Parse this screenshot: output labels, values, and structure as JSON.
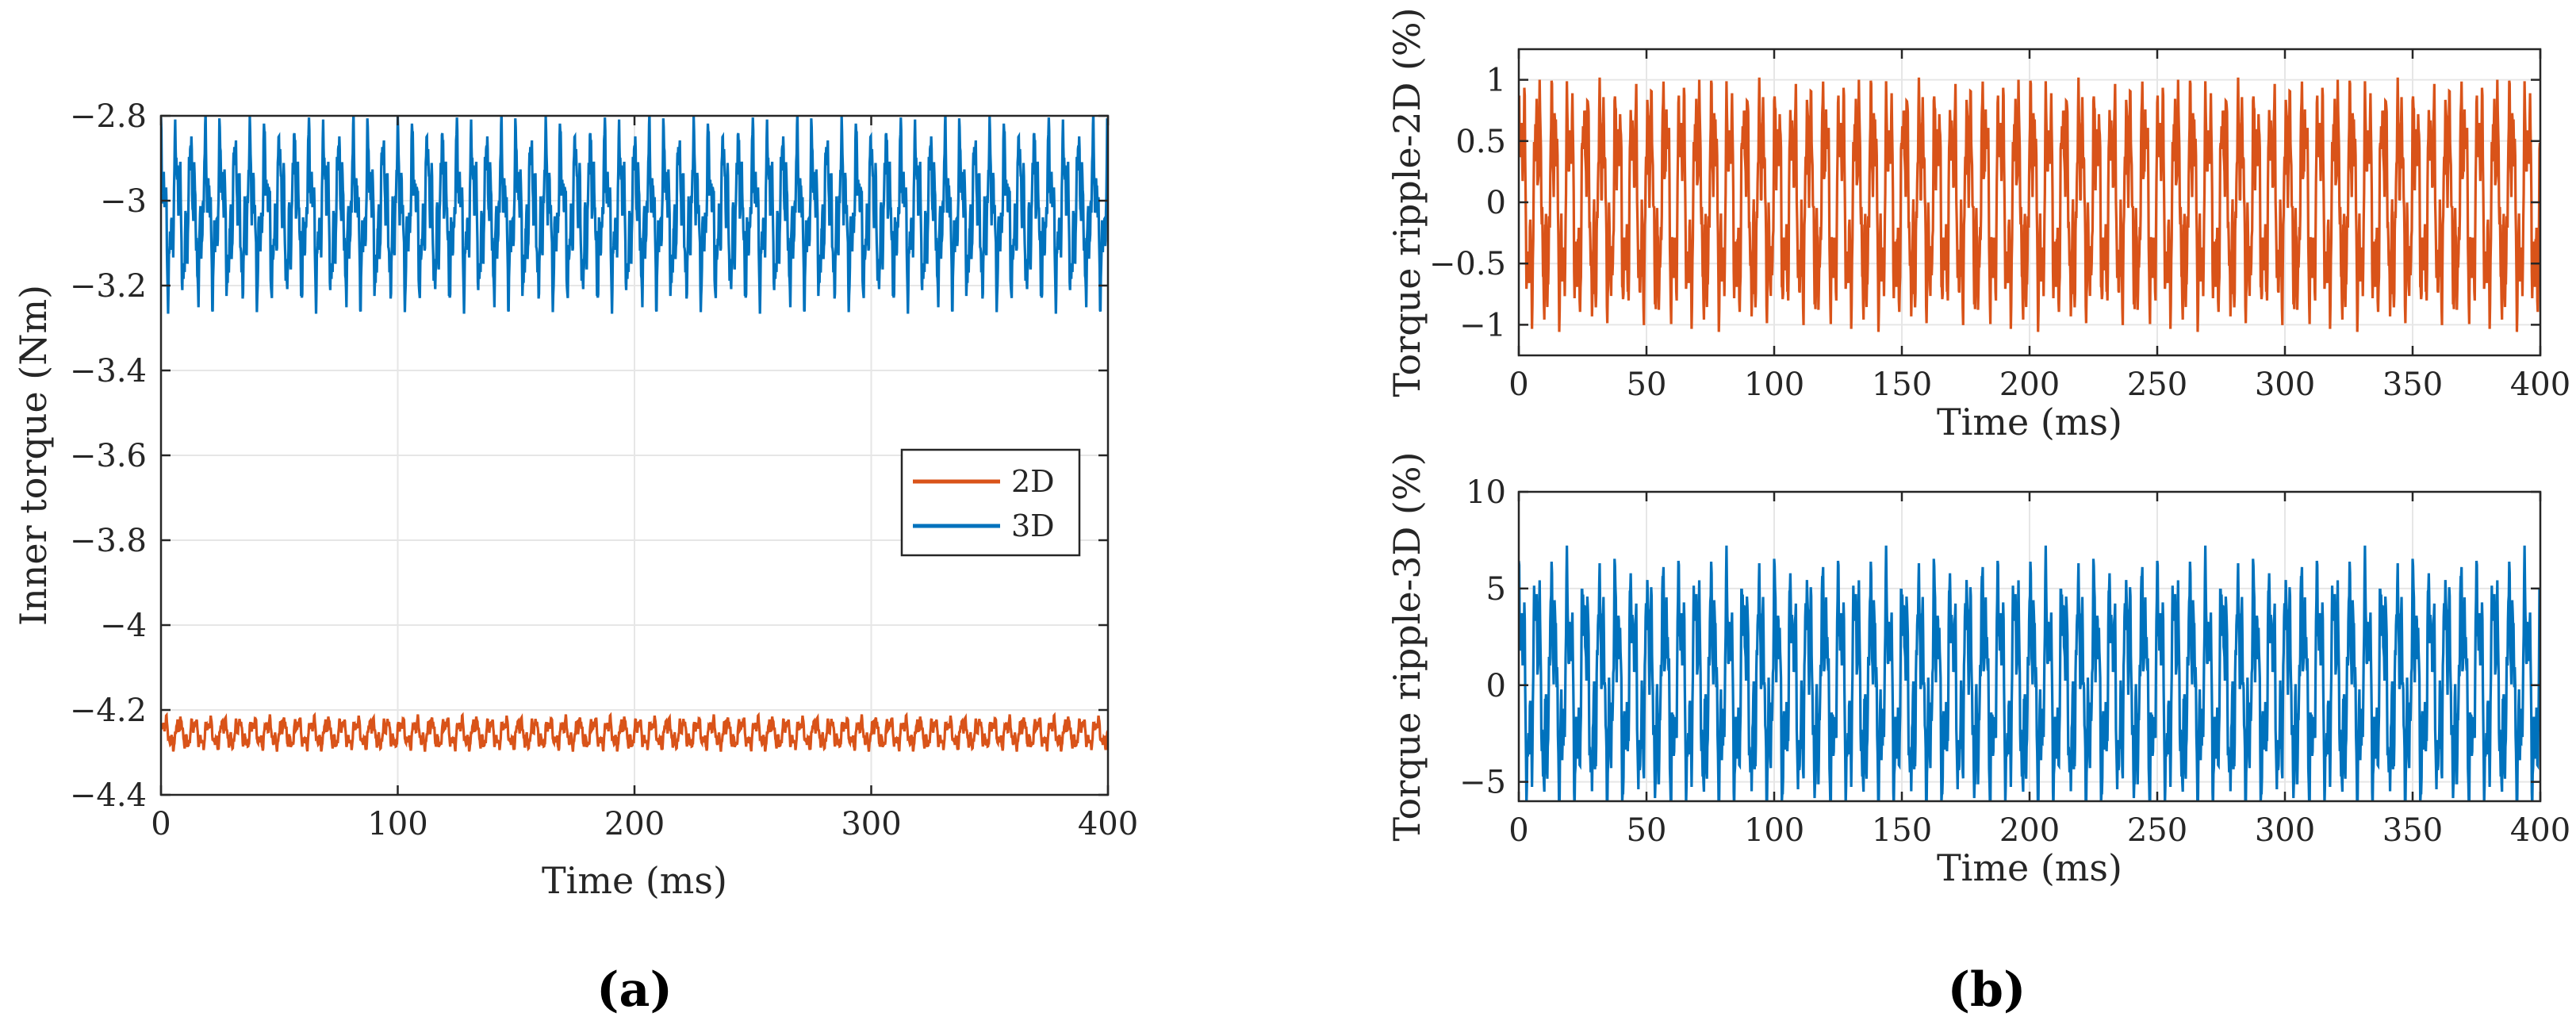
{
  "colors": {
    "2D": "#D95319",
    "3D": "#0072BD"
  },
  "chart_data": [
    {
      "type": "line",
      "caption": "(a)",
      "xlabel": "Time (ms)",
      "ylabel": "Inner torque (Nm)",
      "xlim": [
        0,
        400
      ],
      "ylim": [
        -4.4,
        -2.8
      ],
      "xticks": [
        0,
        100,
        200,
        300,
        400
      ],
      "xtick_labels": [
        "0",
        "100",
        "200",
        "300",
        "400"
      ],
      "yticks": [
        -2.8,
        -3,
        -3.2,
        -3.4,
        -3.6,
        -3.8,
        -4,
        -4.2,
        -4.4
      ],
      "ytick_labels": [
        "−2.8",
        "−3",
        "−3.2",
        "−3.4",
        "−3.6",
        "−3.8",
        "−4",
        "−4.2",
        "−4.4"
      ],
      "grid": true,
      "legend": {
        "position": "center-right",
        "entries": [
          "2D",
          "3D"
        ]
      },
      "series": [
        {
          "name": "2D",
          "mean": -4.255,
          "amplitude": 0.045,
          "ripple_period_ms": 6.25
        },
        {
          "name": "3D",
          "mean": -3.03,
          "amplitude": 0.22,
          "ripple_period_ms": 6.25
        }
      ]
    },
    {
      "type": "line",
      "caption": "(b)",
      "xlabel": "Time (ms)",
      "ylabel": "Torque ripple-2D (%)",
      "xlim": [
        0,
        400
      ],
      "ylim": [
        -1.25,
        1.25
      ],
      "xticks": [
        0,
        50,
        100,
        150,
        200,
        250,
        300,
        350,
        400
      ],
      "xtick_labels": [
        "0",
        "50",
        "100",
        "150",
        "200",
        "250",
        "300",
        "350",
        "400"
      ],
      "yticks": [
        1,
        0.5,
        0,
        -0.5,
        -1
      ],
      "ytick_labels": [
        "1",
        "0.5",
        "0",
        "−0.5",
        "−1"
      ],
      "grid": true,
      "series": [
        {
          "name": "2D",
          "mean": 0,
          "amplitude": 1.15,
          "ripple_period_ms": 6.25
        }
      ]
    },
    {
      "type": "line",
      "caption": "",
      "xlabel": "Time (ms)",
      "ylabel": "Torque ripple-3D (%)",
      "xlim": [
        0,
        400
      ],
      "ylim": [
        -6,
        10
      ],
      "xticks": [
        0,
        50,
        100,
        150,
        200,
        250,
        300,
        350,
        400
      ],
      "xtick_labels": [
        "0",
        "50",
        "100",
        "150",
        "200",
        "250",
        "300",
        "350",
        "400"
      ],
      "yticks": [
        10,
        5,
        0,
        -5
      ],
      "ytick_labels": [
        "10",
        "5",
        "0",
        "−5"
      ],
      "grid": true,
      "series": [
        {
          "name": "3D",
          "mean": 0,
          "amplitude": 7.0,
          "ripple_period_ms": 6.25
        }
      ]
    }
  ]
}
